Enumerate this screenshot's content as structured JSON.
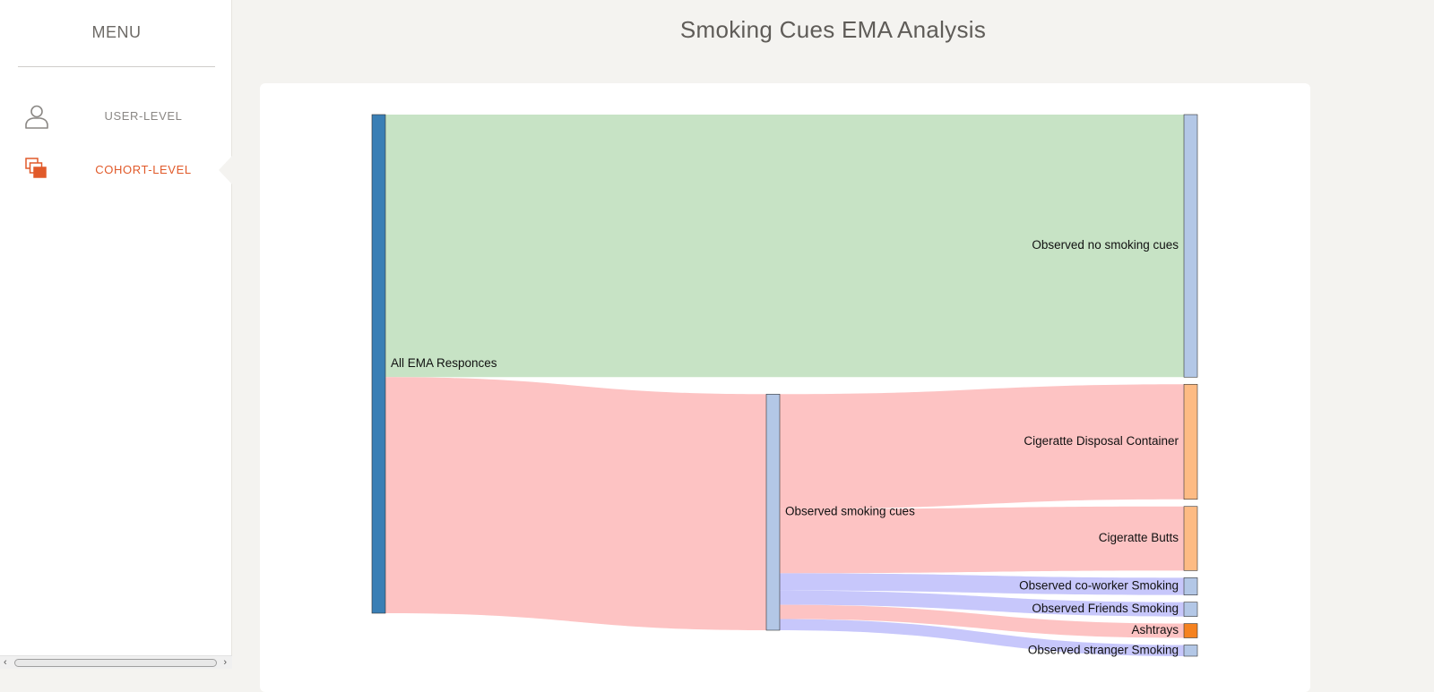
{
  "sidebar": {
    "menu_title": "MENU",
    "items": [
      {
        "label": "USER-LEVEL",
        "icon": "user-icon",
        "active": false
      },
      {
        "label": "COHORT-LEVEL",
        "icon": "cohort-layers-icon",
        "active": true
      }
    ],
    "accent_color": "#e15a2a"
  },
  "header": {
    "title": "Smoking Cues EMA Analysis"
  },
  "chart_data": {
    "type": "sankey",
    "title": "Smoking Cues EMA Analysis",
    "nodes": [
      {
        "id": "all",
        "label": "All EMA Responces",
        "column": 0,
        "color": "#3a7fb5",
        "label_side": "right"
      },
      {
        "id": "no_cues",
        "label": "Observed no smoking cues",
        "column": 2,
        "color": "#b3c7e6",
        "label_side": "left"
      },
      {
        "id": "cues",
        "label": "Observed smoking cues",
        "column": 1,
        "color": "#b3c7e6",
        "label_side": "right"
      },
      {
        "id": "disposal",
        "label": "Cigeratte Disposal Container",
        "column": 2,
        "color": "#fdbb84",
        "label_side": "left"
      },
      {
        "id": "butts",
        "label": "Cigeratte Butts",
        "column": 2,
        "color": "#fdbb84",
        "label_side": "left"
      },
      {
        "id": "coworker",
        "label": "Observed co-worker Smoking",
        "column": 2,
        "color": "#b3c7e6",
        "label_side": "left"
      },
      {
        "id": "friends",
        "label": "Observed Friends Smoking",
        "column": 2,
        "color": "#b3c7e6",
        "label_side": "left"
      },
      {
        "id": "ashtrays",
        "label": "Ashtrays",
        "column": 2,
        "color": "#f5821f",
        "label_side": "left"
      },
      {
        "id": "stranger",
        "label": "Observed stranger Smoking",
        "column": 2,
        "color": "#b3c7e6",
        "label_side": "left"
      }
    ],
    "links": [
      {
        "source": "all",
        "target": "no_cues",
        "value": 258,
        "color": "#c7e3c5"
      },
      {
        "source": "all",
        "target": "cues",
        "value": 232,
        "color": "#fdc3c3"
      },
      {
        "source": "cues",
        "target": "disposal",
        "value": 113,
        "color": "#fdc3c3"
      },
      {
        "source": "cues",
        "target": "butts",
        "value": 63,
        "color": "#fdc3c3"
      },
      {
        "source": "cues",
        "target": "coworker",
        "value": 17,
        "color": "#c7c7fb"
      },
      {
        "source": "cues",
        "target": "friends",
        "value": 14,
        "color": "#c7c7fb"
      },
      {
        "source": "cues",
        "target": "ashtrays",
        "value": 14,
        "color": "#fdc3c3"
      },
      {
        "source": "cues",
        "target": "stranger",
        "value": 11,
        "color": "#c7c7fb"
      }
    ]
  }
}
